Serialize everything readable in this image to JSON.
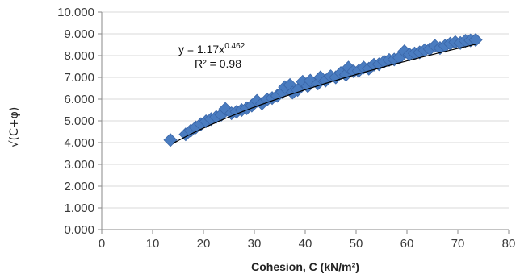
{
  "chart_data": {
    "type": "scatter",
    "title": "",
    "xlabel": "Cohesion, C (kN/m²)",
    "ylabel": "√(C+φ)",
    "xlim": [
      0,
      80
    ],
    "ylim": [
      0,
      10
    ],
    "x_ticks": [
      "0",
      "10",
      "20",
      "30",
      "40",
      "50",
      "60",
      "70",
      "80"
    ],
    "y_ticks": [
      "0.000",
      "1.000",
      "2.000",
      "3.000",
      "4.000",
      "5.000",
      "6.000",
      "7.000",
      "8.000",
      "9.000",
      "10.000"
    ],
    "grid": "horizontal",
    "marker": "diamond",
    "colors": {
      "points": "#4a7cc0",
      "point_edge": "#3a66a8",
      "trend": "#000000",
      "grid": "#d9d9d9",
      "axis": "#8a8a8a"
    },
    "trendline": {
      "type": "power",
      "coefficient": 1.17,
      "exponent": 0.462,
      "equation_text": "y = 1.17x",
      "exponent_text": "0.462",
      "r2_text": "R² = 0.98"
    },
    "series": [
      {
        "points": [
          [
            13.5,
            4.12
          ],
          [
            16.5,
            4.38
          ],
          [
            17.5,
            4.55
          ],
          [
            18.5,
            4.7
          ],
          [
            19.5,
            4.85
          ],
          [
            20.5,
            4.98
          ],
          [
            21.5,
            5.08
          ],
          [
            22.5,
            5.18
          ],
          [
            23.5,
            5.28
          ],
          [
            24.3,
            5.55
          ],
          [
            25.5,
            5.35
          ],
          [
            26.5,
            5.42
          ],
          [
            27.5,
            5.5
          ],
          [
            28.5,
            5.58
          ],
          [
            29.5,
            5.7
          ],
          [
            30.5,
            5.92
          ],
          [
            31.5,
            5.8
          ],
          [
            32.5,
            5.98
          ],
          [
            33.5,
            6.05
          ],
          [
            34.5,
            6.15
          ],
          [
            35.5,
            6.32
          ],
          [
            36.0,
            6.55
          ],
          [
            37.0,
            6.65
          ],
          [
            37.5,
            6.3
          ],
          [
            38.5,
            6.42
          ],
          [
            39.5,
            6.8
          ],
          [
            40.5,
            6.6
          ],
          [
            41.0,
            6.85
          ],
          [
            42.5,
            6.72
          ],
          [
            43.0,
            7.0
          ],
          [
            44.0,
            6.85
          ],
          [
            45.0,
            7.05
          ],
          [
            46.0,
            7.0
          ],
          [
            47.0,
            7.2
          ],
          [
            48.0,
            7.12
          ],
          [
            48.5,
            7.45
          ],
          [
            49.5,
            7.28
          ],
          [
            50.5,
            7.3
          ],
          [
            51.5,
            7.45
          ],
          [
            52.5,
            7.4
          ],
          [
            53.5,
            7.58
          ],
          [
            54.5,
            7.6
          ],
          [
            55.5,
            7.72
          ],
          [
            56.5,
            7.8
          ],
          [
            57.5,
            7.82
          ],
          [
            58.5,
            7.9
          ],
          [
            59.5,
            8.2
          ],
          [
            60.5,
            8.05
          ],
          [
            61.5,
            8.1
          ],
          [
            62.5,
            8.15
          ],
          [
            63.5,
            8.25
          ],
          [
            64.5,
            8.3
          ],
          [
            65.5,
            8.45
          ],
          [
            66.5,
            8.35
          ],
          [
            67.5,
            8.45
          ],
          [
            68.5,
            8.55
          ],
          [
            69.5,
            8.62
          ],
          [
            70.5,
            8.58
          ],
          [
            71.5,
            8.68
          ],
          [
            72.5,
            8.7
          ],
          [
            73.5,
            8.72
          ]
        ]
      }
    ]
  }
}
